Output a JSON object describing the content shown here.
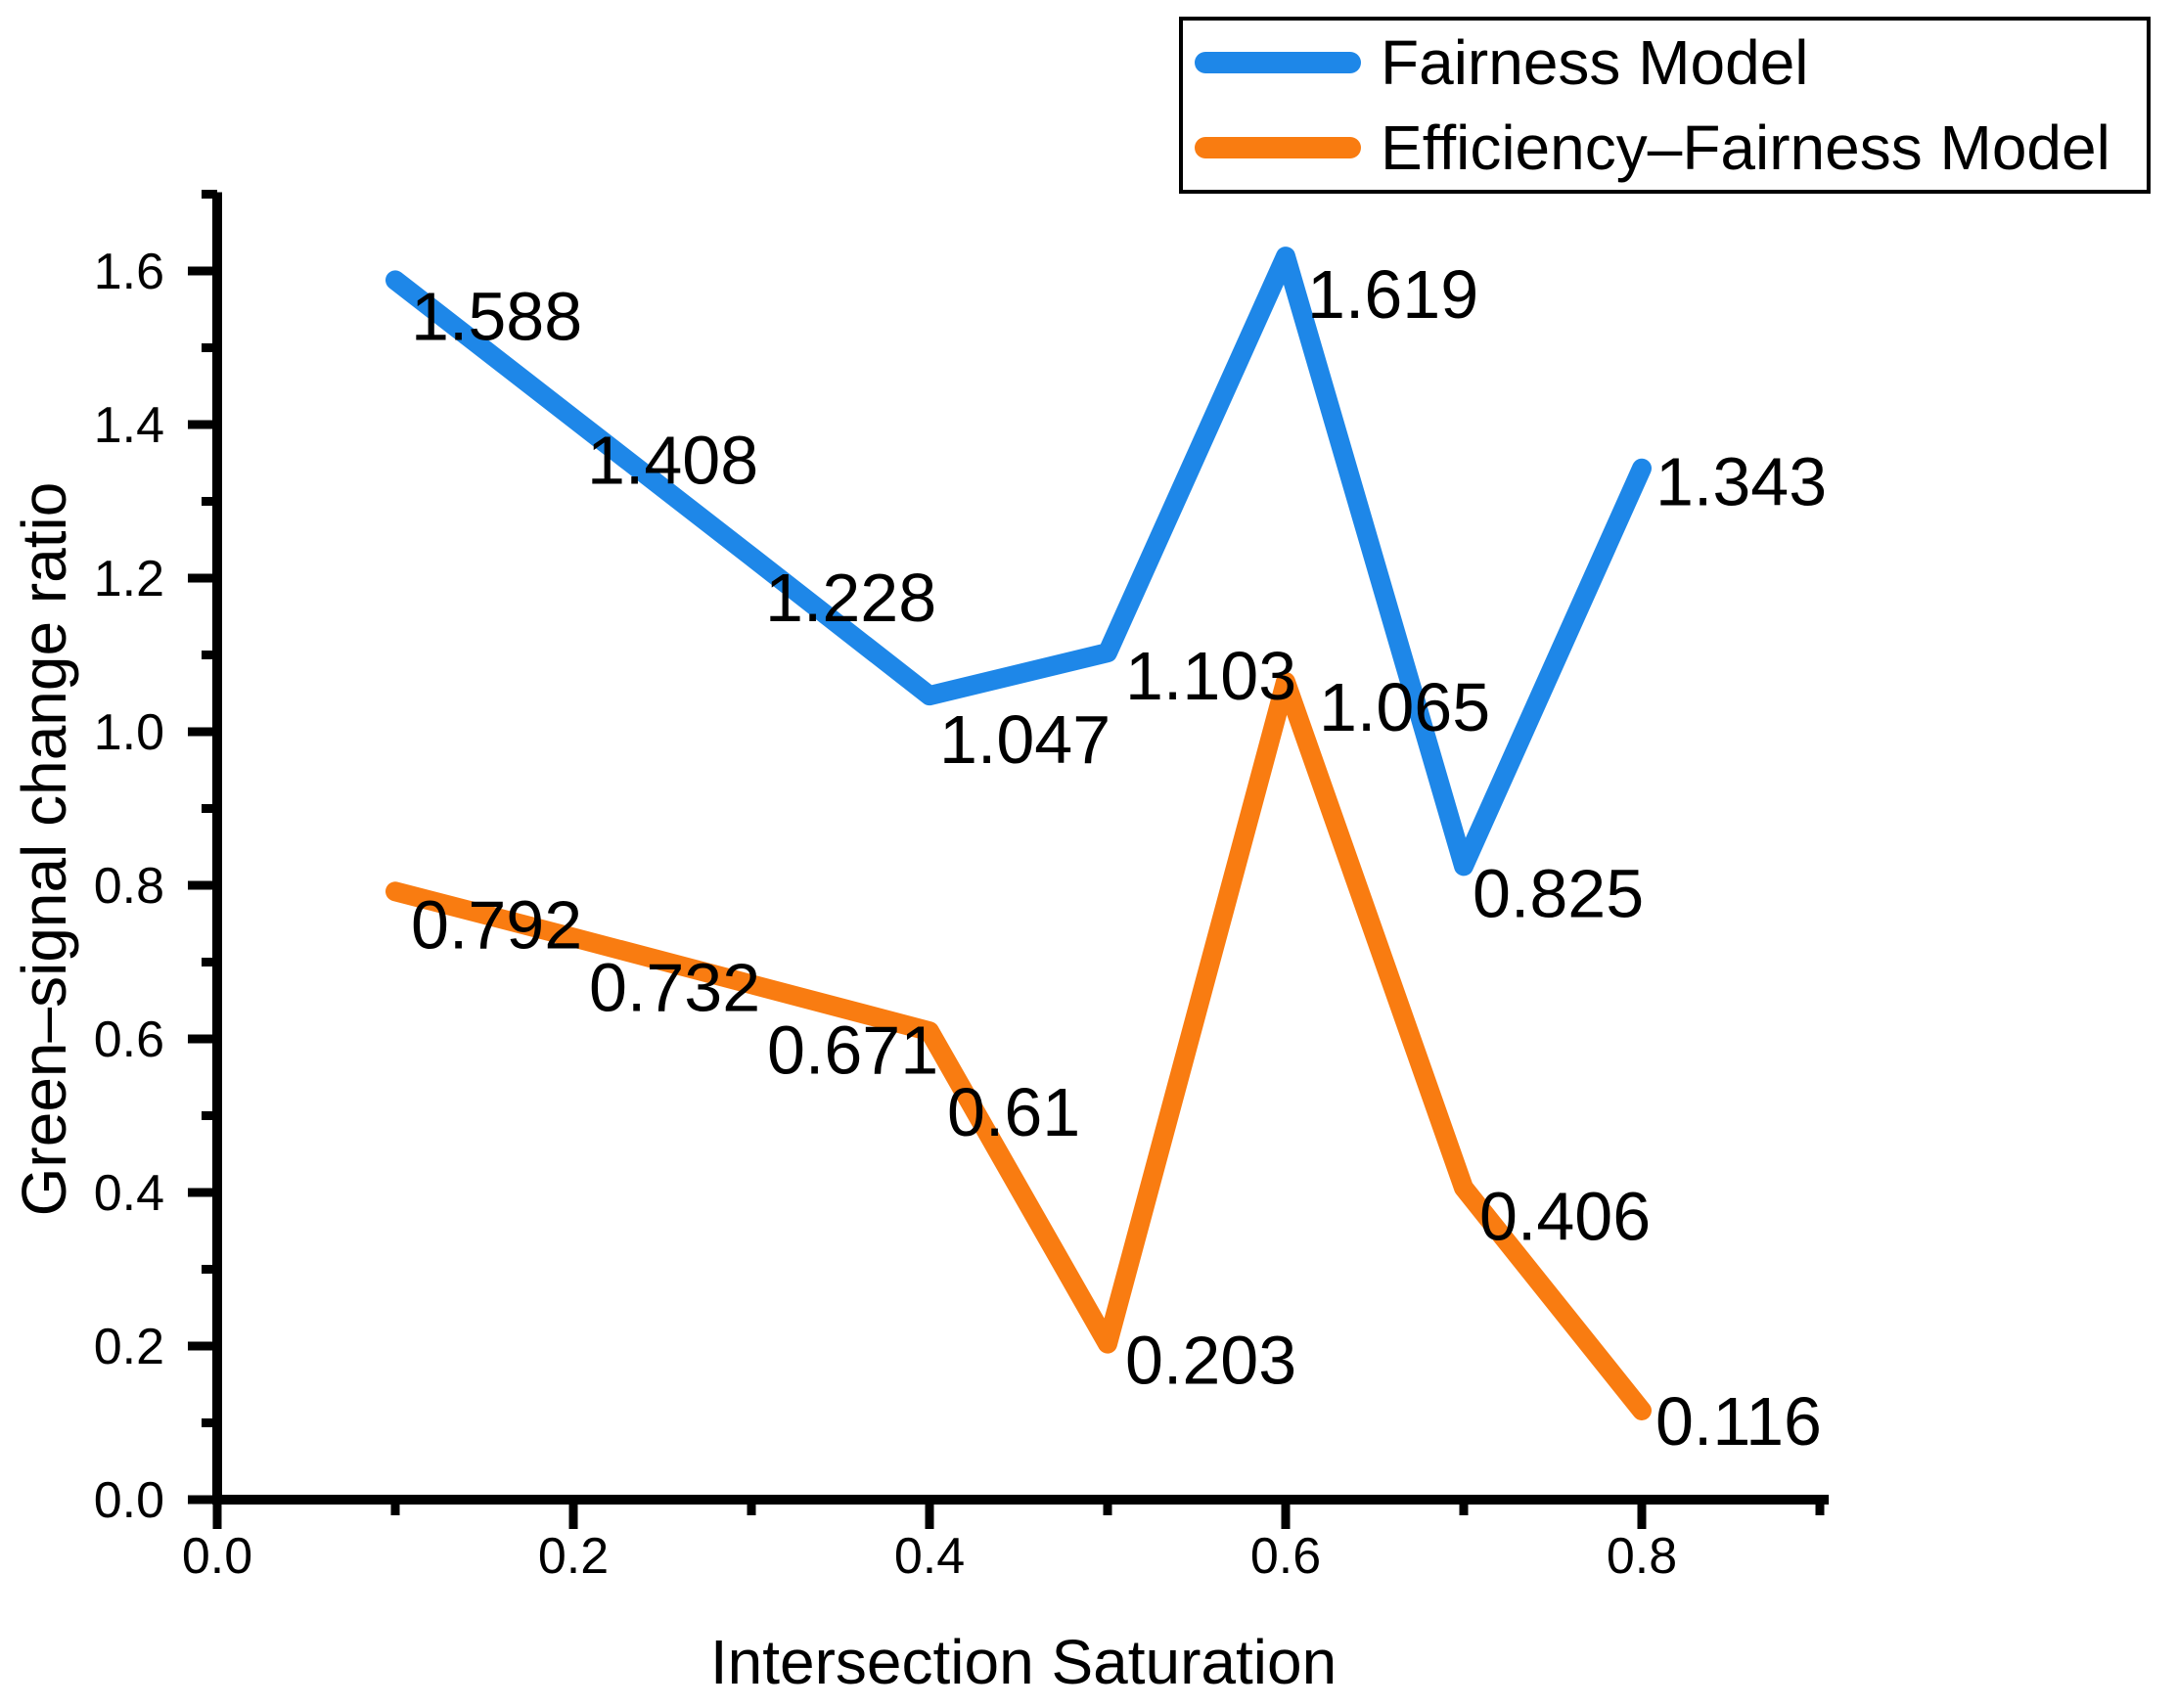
{
  "chart_data": {
    "type": "line",
    "title": "",
    "xlabel": "Intersection Saturation",
    "ylabel": "Green–signal change ratio",
    "x": [
      0.1,
      0.2,
      0.3,
      0.4,
      0.5,
      0.6,
      0.7,
      0.8
    ],
    "series": [
      {
        "name": "Fairness Model",
        "color": "#1E87E8",
        "values": [
          1.588,
          1.408,
          1.228,
          1.047,
          1.103,
          1.619,
          0.825,
          1.343
        ],
        "point_labels": [
          "1.588",
          "1.408",
          "1.228",
          "1.047",
          "1.103",
          "1.619",
          "0.825",
          "1.343"
        ],
        "label_offsets": [
          [
            16,
            36
          ],
          [
            14,
            42
          ],
          [
            14,
            41
          ],
          [
            10,
            44
          ],
          [
            18,
            23
          ],
          [
            22,
            38
          ],
          [
            9,
            27
          ],
          [
            14,
            13
          ]
        ]
      },
      {
        "name": "Efficiency–Fairness Model",
        "color": "#F97C11",
        "values": [
          0.792,
          0.732,
          0.671,
          0.61,
          0.203,
          1.065,
          0.406,
          0.116
        ],
        "point_labels": [
          "0.792",
          "0.732",
          "0.671",
          "0.61",
          "0.203",
          "1.065",
          "0.406",
          "0.116"
        ],
        "label_offsets": [
          [
            16,
            33
          ],
          [
            16,
            50
          ],
          [
            16,
            66
          ],
          [
            18,
            82
          ],
          [
            18,
            16
          ],
          [
            34,
            25
          ],
          [
            16,
            28
          ],
          [
            14,
            10
          ]
        ]
      }
    ],
    "xlim": [
      0.0,
      0.905
    ],
    "ylim": [
      0.0,
      1.7
    ],
    "x_major_ticks": [
      0.0,
      0.2,
      0.4,
      0.6,
      0.8
    ],
    "x_major_tick_labels": [
      "0.0",
      "0.2",
      "0.4",
      "0.6",
      "0.8"
    ],
    "x_minor_ticks": [
      0.1,
      0.3,
      0.5,
      0.7,
      0.9
    ],
    "y_major_ticks": [
      0.0,
      0.2,
      0.4,
      0.6,
      0.8,
      1.0,
      1.2,
      1.4,
      1.6
    ],
    "y_major_tick_labels": [
      "0.0",
      "0.2",
      "0.4",
      "0.6",
      "0.8",
      "1.0",
      "1.2",
      "1.4",
      "1.6"
    ],
    "y_minor_ticks": [
      0.1,
      0.3,
      0.5,
      0.7,
      0.9,
      1.1,
      1.3,
      1.5,
      1.7
    ],
    "grid": "off",
    "legend_position": "top-right",
    "axis_color": "#000000",
    "background_color": "#ffffff"
  },
  "legend": {
    "entries": [
      {
        "label": "Fairness Model",
        "color": "#1E87E8"
      },
      {
        "label": "Efficiency–Fairness Model",
        "color": "#F97C11"
      }
    ]
  }
}
